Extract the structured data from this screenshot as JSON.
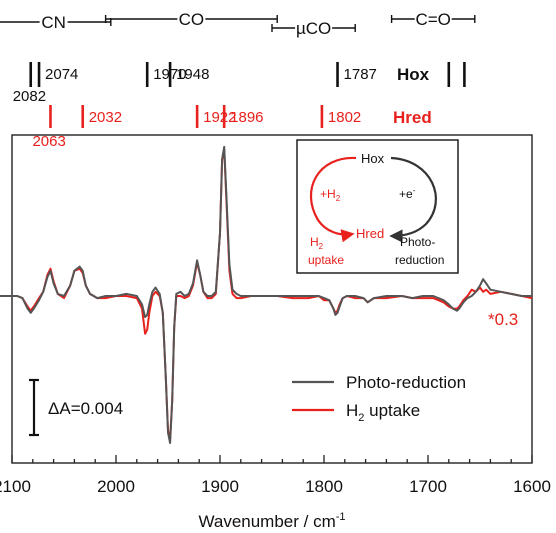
{
  "chart_data": {
    "type": "line",
    "xlabel": "Wavenumber / cm",
    "xlabel_sup": "-1",
    "xlim": [
      2100,
      1600
    ],
    "x_ticks": [
      2100,
      2000,
      1900,
      1800,
      1700,
      1600
    ],
    "x_tick_labels": [
      "2100",
      "2000",
      "1900",
      "1800",
      "1700",
      "1600"
    ],
    "ylabel": "",
    "grid": false,
    "legend_position": "bottom-right",
    "region_brackets": [
      {
        "label": "CN",
        "from": 2115,
        "to": 2005
      },
      {
        "label": "CO",
        "from": 2010,
        "to": 1845
      },
      {
        "label": "µCO",
        "from": 1850,
        "to": 1770
      },
      {
        "label": "C=O",
        "from": 1735,
        "to": 1655
      }
    ],
    "hox": {
      "label": "Hox",
      "lines": [
        2082,
        2074,
        1970,
        1948,
        1787,
        1680,
        1665
      ],
      "labels": [
        {
          "text": "2082",
          "at": 2082,
          "row": "low"
        },
        {
          "text": "2074",
          "at": 2074,
          "row": "high"
        },
        {
          "text": "1970",
          "at": 1970,
          "row": "high"
        },
        {
          "text": "1948",
          "at": 1948,
          "row": "high"
        },
        {
          "text": "1787",
          "at": 1787,
          "row": "high"
        }
      ]
    },
    "hred": {
      "label": "Hred",
      "lines": [
        2063,
        2032,
        1922,
        1896,
        1802
      ],
      "labels": [
        {
          "text": "2063",
          "at": 2063,
          "row": "low"
        },
        {
          "text": "2032",
          "at": 2032,
          "row": "high"
        },
        {
          "text": "1922",
          "at": 1922,
          "row": "high"
        },
        {
          "text": "1896",
          "at": 1896,
          "row": "high"
        },
        {
          "text": "1802",
          "at": 1802,
          "row": "high"
        }
      ]
    },
    "scale_bar": {
      "label": "ΔA=0.004",
      "value": 0.004
    },
    "ylim": [
      -0.0076,
      0.0074
    ],
    "multiplier_note": "*0.3",
    "series": [
      {
        "name": "Photo-reduction",
        "color": "#555555",
        "x": [
          2115,
          2095,
          2090,
          2085,
          2082,
          2079,
          2074,
          2070,
          2066,
          2063,
          2060,
          2056,
          2050,
          2044,
          2040,
          2035,
          2032,
          2029,
          2025,
          2018,
          2010,
          2000,
          1990,
          1980,
          1975,
          1972,
          1970,
          1968,
          1965,
          1962,
          1958,
          1955,
          1952,
          1950,
          1948,
          1946,
          1944,
          1942,
          1938,
          1934,
          1930,
          1926,
          1922,
          1919,
          1916,
          1912,
          1908,
          1904,
          1900,
          1898,
          1896,
          1894,
          1891,
          1888,
          1884,
          1880,
          1870,
          1855,
          1845,
          1830,
          1815,
          1805,
          1800,
          1795,
          1791,
          1789,
          1787,
          1785,
          1782,
          1778,
          1770,
          1762,
          1758,
          1752,
          1740,
          1725,
          1715,
          1705,
          1695,
          1685,
          1680,
          1676,
          1672,
          1670,
          1666,
          1662,
          1658,
          1654,
          1650,
          1647,
          1644,
          1640,
          1630,
          1620,
          1610,
          1600
        ],
        "y": [
          0,
          0,
          -0.0001,
          -0.0006,
          -0.0008,
          -0.0006,
          -0.0002,
          0.0002,
          0.0009,
          0.0012,
          0.0006,
          0.0001,
          0,
          0.0005,
          0.0012,
          0.0014,
          0.0012,
          0.0005,
          0.0001,
          -0.0001,
          0,
          0,
          0.0001,
          0,
          -0.0004,
          -0.001,
          -0.0009,
          -0.0004,
          0.0002,
          0.0004,
          0.0001,
          -0.0008,
          -0.004,
          -0.0065,
          -0.007,
          -0.005,
          -0.0015,
          0.0001,
          0.0002,
          0,
          0.0001,
          0.0006,
          0.0017,
          0.001,
          0.0002,
          0,
          0,
          0.0002,
          0.003,
          0.0065,
          0.0071,
          0.005,
          0.0015,
          0.0003,
          0.0001,
          0,
          0,
          0,
          0,
          0,
          0,
          0,
          -0.0001,
          -0.0002,
          -0.0006,
          -0.0009,
          -0.0008,
          -0.0005,
          -0.0001,
          0,
          0,
          -0.0001,
          -0.0003,
          -0.0001,
          0,
          0,
          -0.0001,
          0,
          0,
          -0.0002,
          -0.0004,
          -0.0006,
          -0.0007,
          -0.0006,
          -0.0003,
          -0.0001,
          0,
          0.0002,
          0.0005,
          0.0008,
          0.0006,
          0.0003,
          0.0002,
          0.0001,
          0,
          0
        ]
      },
      {
        "name": "H2 uptake",
        "color": "#e8211d",
        "x": [
          2115,
          2095,
          2090,
          2085,
          2082,
          2079,
          2074,
          2070,
          2066,
          2063,
          2060,
          2056,
          2050,
          2044,
          2040,
          2035,
          2032,
          2029,
          2025,
          2018,
          2010,
          2000,
          1990,
          1980,
          1975,
          1972,
          1970,
          1968,
          1965,
          1962,
          1958,
          1955,
          1952,
          1950,
          1948,
          1946,
          1944,
          1942,
          1938,
          1934,
          1930,
          1926,
          1922,
          1919,
          1916,
          1912,
          1908,
          1904,
          1900,
          1898,
          1896,
          1894,
          1891,
          1888,
          1884,
          1880,
          1870,
          1855,
          1845,
          1830,
          1815,
          1805,
          1800,
          1795,
          1791,
          1789,
          1787,
          1785,
          1782,
          1778,
          1770,
          1762,
          1758,
          1752,
          1740,
          1725,
          1715,
          1705,
          1695,
          1685,
          1680,
          1676,
          1672,
          1670,
          1666,
          1662,
          1658,
          1654,
          1650,
          1647,
          1644,
          1640,
          1630,
          1620,
          1610,
          1600
        ],
        "y": [
          0,
          0,
          -0.0001,
          -0.0005,
          -0.0007,
          -0.0005,
          -0.0001,
          0.0002,
          0.001,
          0.0013,
          0.0007,
          0.0001,
          -0.0001,
          0.0005,
          0.0012,
          0.0013,
          0.0011,
          0.0005,
          0.0001,
          -0.0001,
          -0.0001,
          0,
          0,
          -0.0001,
          -0.0006,
          -0.0018,
          -0.0016,
          -0.0008,
          0,
          0.0002,
          0,
          -0.0008,
          -0.004,
          -0.0064,
          -0.0068,
          -0.005,
          -0.0015,
          0,
          0,
          -0.0001,
          0,
          0.0005,
          0.0016,
          0.001,
          0.0002,
          -0.0001,
          -0.0001,
          0.0001,
          0.003,
          0.0065,
          0.007,
          0.0048,
          0.0012,
          0.0001,
          -0.0001,
          -0.0001,
          0,
          0,
          0,
          -0.0001,
          -0.0001,
          0,
          -0.0002,
          -0.0002,
          -0.0006,
          -0.0008,
          -0.0007,
          -0.0004,
          -0.0001,
          0,
          -0.0001,
          -0.0001,
          -0.0003,
          -0.0001,
          -0.0001,
          0,
          -0.0001,
          -0.0001,
          -0.0001,
          -0.0003,
          -0.0005,
          -0.0006,
          -0.0006,
          -0.0005,
          -0.0002,
          0,
          0.0003,
          0.0002,
          0.0004,
          0.0002,
          0.0003,
          0.0001,
          0.0002,
          0.0001,
          0,
          -0.0001
        ]
      }
    ],
    "inset": {
      "hox": "Hox",
      "h2_arrow_prefix": "+H",
      "h2_arrow_sub": "2",
      "electron_prefix": "+e",
      "electron_sup": "-",
      "hred": "Hred",
      "uptake_line1_prefix": "H",
      "uptake_line1_sub": "2",
      "uptake_line2": "uptake",
      "photo_line1": "Photo-",
      "photo_line2": "reduction"
    },
    "legend": {
      "photo": "Photo-reduction",
      "h2_prefix": "H",
      "h2_sub": "2",
      "h2_suffix": " uptake"
    }
  }
}
